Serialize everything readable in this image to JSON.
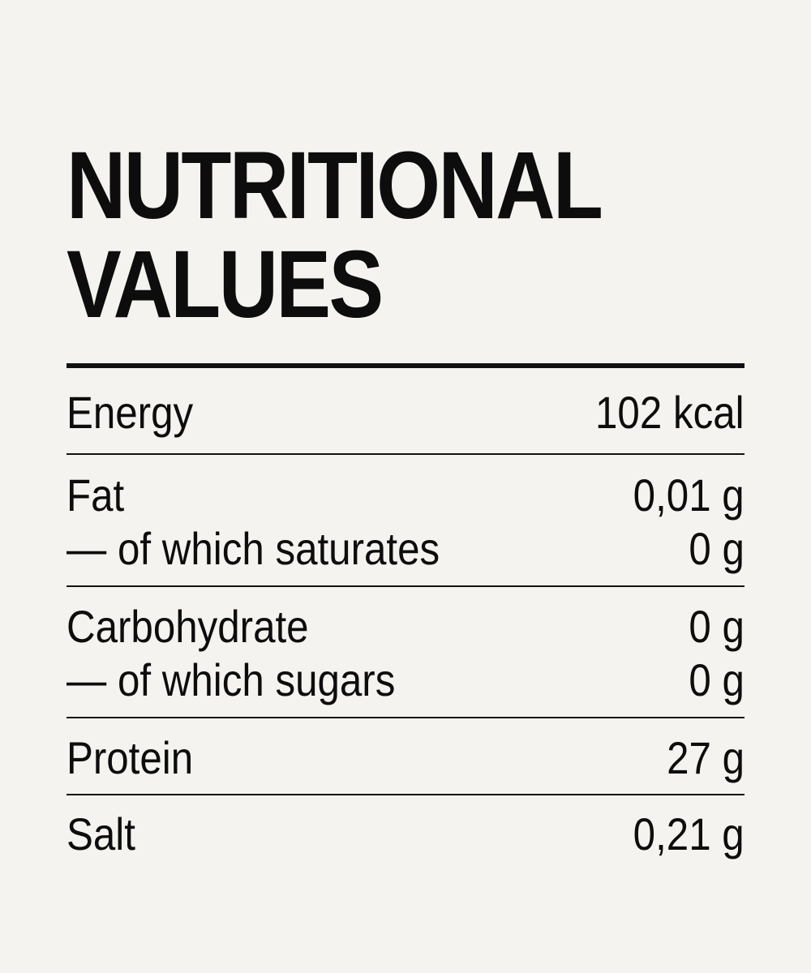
{
  "title": {
    "line1": "NUTRITIONAL",
    "line2": "VALUES"
  },
  "rows": [
    {
      "label": "Energy",
      "value": "102 kcal"
    },
    {
      "label": "Fat",
      "value": "0,01 g"
    },
    {
      "label": "— of which saturates",
      "value": "0 g"
    },
    {
      "label": "Carbohydrate",
      "value": "0 g"
    },
    {
      "label": "— of which sugars",
      "value": "0 g"
    },
    {
      "label": "Protein",
      "value": "27 g"
    },
    {
      "label": "Salt",
      "value": "0,21 g"
    }
  ],
  "colors": {
    "background": "#f4f3ef",
    "text": "#0d0d0d",
    "rules": "#111111"
  }
}
